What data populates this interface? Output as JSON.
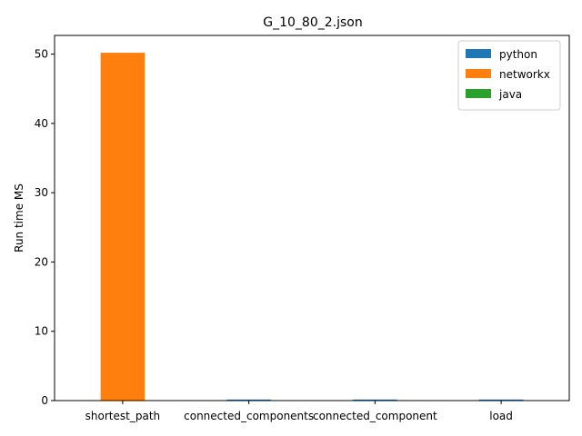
{
  "chart_data": {
    "type": "bar",
    "title": "G_10_80_2.json",
    "xlabel": "",
    "ylabel": "Run time MS",
    "categories": [
      "shortest_path",
      "connected_components",
      "connected_component",
      "load"
    ],
    "series": [
      {
        "name": "python",
        "color": "#1f77b4",
        "values": [
          0.0,
          0.15,
          0.15,
          0.15
        ]
      },
      {
        "name": "networkx",
        "color": "#ff7f0e",
        "values": [
          50.2,
          0.0,
          0.0,
          0.0
        ]
      },
      {
        "name": "java",
        "color": "#2ca02c",
        "values": [
          0.0,
          0.0,
          0.0,
          0.0
        ]
      }
    ],
    "ylim": [
      0,
      52.7
    ],
    "yticks": [
      "0",
      "10",
      "20",
      "30",
      "40",
      "50"
    ],
    "legend": "top-right",
    "grid": false
  }
}
